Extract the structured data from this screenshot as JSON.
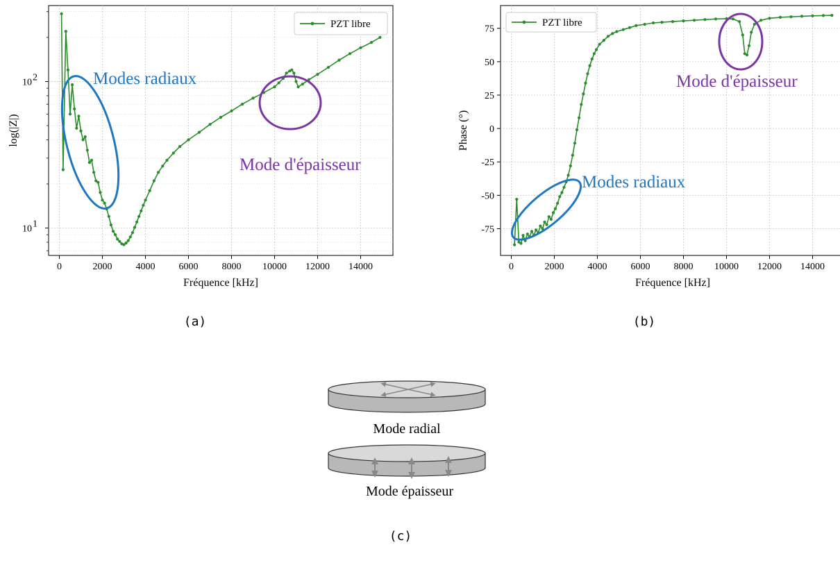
{
  "colors": {
    "series": "#2a8c2a",
    "radial_annot": "#1f77c2",
    "thickness_annot": "#7b35a3",
    "grid": "#c8c8c8",
    "disk_top": "#d9d9d9",
    "disk_side": "#b8b8b8",
    "arrow": "#888888"
  },
  "chart_data": [
    {
      "type": "line",
      "panel_caption": "(a)",
      "xlabel": "Fréquence [kHz]",
      "ylabel": "log(|Z|)",
      "yscale": "log",
      "xlim": [
        -500,
        15500
      ],
      "ylim": [
        6.5,
        330
      ],
      "xticks": [
        0,
        2000,
        4000,
        6000,
        8000,
        10000,
        12000,
        14000
      ],
      "yticks": [
        {
          "value": 10,
          "base": "10",
          "exp": "1"
        },
        {
          "value": 100,
          "base": "10",
          "exp": "2"
        }
      ],
      "grid": true,
      "legend_position": "top-right",
      "series": [
        {
          "name": "PZT libre",
          "x": [
            100,
            175,
            300,
            400,
            500,
            600,
            700,
            800,
            900,
            1000,
            1100,
            1200,
            1300,
            1400,
            1500,
            1600,
            1700,
            1800,
            1900,
            2000,
            2100,
            2200,
            2300,
            2400,
            2500,
            2600,
            2700,
            2800,
            2900,
            3000,
            3100,
            3200,
            3300,
            3400,
            3500,
            3600,
            3700,
            3800,
            3900,
            4000,
            4200,
            4400,
            4600,
            4800,
            5000,
            5300,
            5600,
            6000,
            6500,
            7000,
            7500,
            8000,
            8500,
            9000,
            9500,
            10000,
            10200,
            10400,
            10550,
            10700,
            10800,
            10900,
            11000,
            11100,
            11300,
            11600,
            12000,
            12500,
            13000,
            13500,
            14000,
            14500,
            14900
          ],
          "y": [
            290,
            25,
            220,
            120,
            60,
            95,
            65,
            48,
            58,
            46,
            40,
            42,
            34,
            28,
            29,
            24,
            21,
            20.5,
            17.5,
            15.5,
            14.8,
            13.5,
            12,
            10.5,
            9.5,
            9.0,
            8.4,
            8.1,
            7.8,
            7.7,
            7.9,
            8.2,
            8.7,
            9.3,
            10.1,
            11,
            12,
            13.1,
            14.3,
            15.5,
            18,
            21,
            24,
            26.5,
            29,
            32.5,
            36,
            40,
            45,
            51,
            57,
            63,
            70,
            77,
            84,
            92,
            98,
            105,
            114,
            118,
            120,
            114,
            100,
            92,
            96,
            103,
            112,
            125,
            140,
            155,
            170,
            185,
            200
          ]
        }
      ]
    },
    {
      "type": "line",
      "panel_caption": "(b)",
      "xlabel": "Fréquence [kHz]",
      "ylabel": "Phase (°)",
      "yscale": "linear",
      "xlim": [
        -500,
        15500
      ],
      "ylim": [
        -95,
        92
      ],
      "xticks": [
        0,
        2000,
        4000,
        6000,
        8000,
        10000,
        12000,
        14000
      ],
      "yticks": [
        -75,
        -50,
        -25,
        0,
        25,
        50,
        75
      ],
      "grid": true,
      "legend_position": "top-left",
      "series": [
        {
          "name": "PZT libre",
          "x": [
            150,
            250,
            350,
            450,
            550,
            650,
            750,
            850,
            950,
            1050,
            1150,
            1250,
            1350,
            1450,
            1550,
            1650,
            1750,
            1850,
            1950,
            2050,
            2150,
            2250,
            2350,
            2450,
            2550,
            2650,
            2750,
            2850,
            2950,
            3050,
            3150,
            3250,
            3350,
            3450,
            3550,
            3650,
            3750,
            3850,
            3950,
            4100,
            4300,
            4500,
            4700,
            4900,
            5200,
            5500,
            5800,
            6200,
            6600,
            7000,
            7500,
            8000,
            8500,
            9000,
            9500,
            10000,
            10300,
            10600,
            10750,
            10850,
            10950,
            11050,
            11150,
            11300,
            11600,
            12000,
            12500,
            13000,
            13500,
            14000,
            14500,
            14900
          ],
          "y": [
            -87,
            -53,
            -85,
            -86,
            -80,
            -84,
            -79,
            -81,
            -77,
            -80,
            -76,
            -78,
            -73,
            -75,
            -70,
            -72,
            -66,
            -68,
            -63,
            -60,
            -56,
            -51,
            -48,
            -44,
            -40,
            -35,
            -28,
            -20,
            -11,
            -1,
            8,
            18,
            26,
            34,
            41,
            47,
            52,
            56,
            59,
            63,
            66,
            69,
            71,
            72.5,
            74,
            75.5,
            77,
            78,
            79,
            79.5,
            80,
            80.5,
            81,
            81.5,
            82,
            82.2,
            82,
            80,
            70,
            56,
            55,
            62,
            72,
            78,
            81,
            82.5,
            83.2,
            83.6,
            84,
            84.3,
            84.5,
            84.7
          ]
        }
      ]
    }
  ],
  "annotations": {
    "a_radial": "Modes radiaux",
    "a_thickness": "Mode d'épaisseur",
    "b_radial": "Modes radiaux",
    "b_thickness": "Mode d'épaisseur"
  },
  "diagram": {
    "radial_label": "Mode radial",
    "thickness_label": "Mode épaisseur",
    "caption": "(c)"
  }
}
